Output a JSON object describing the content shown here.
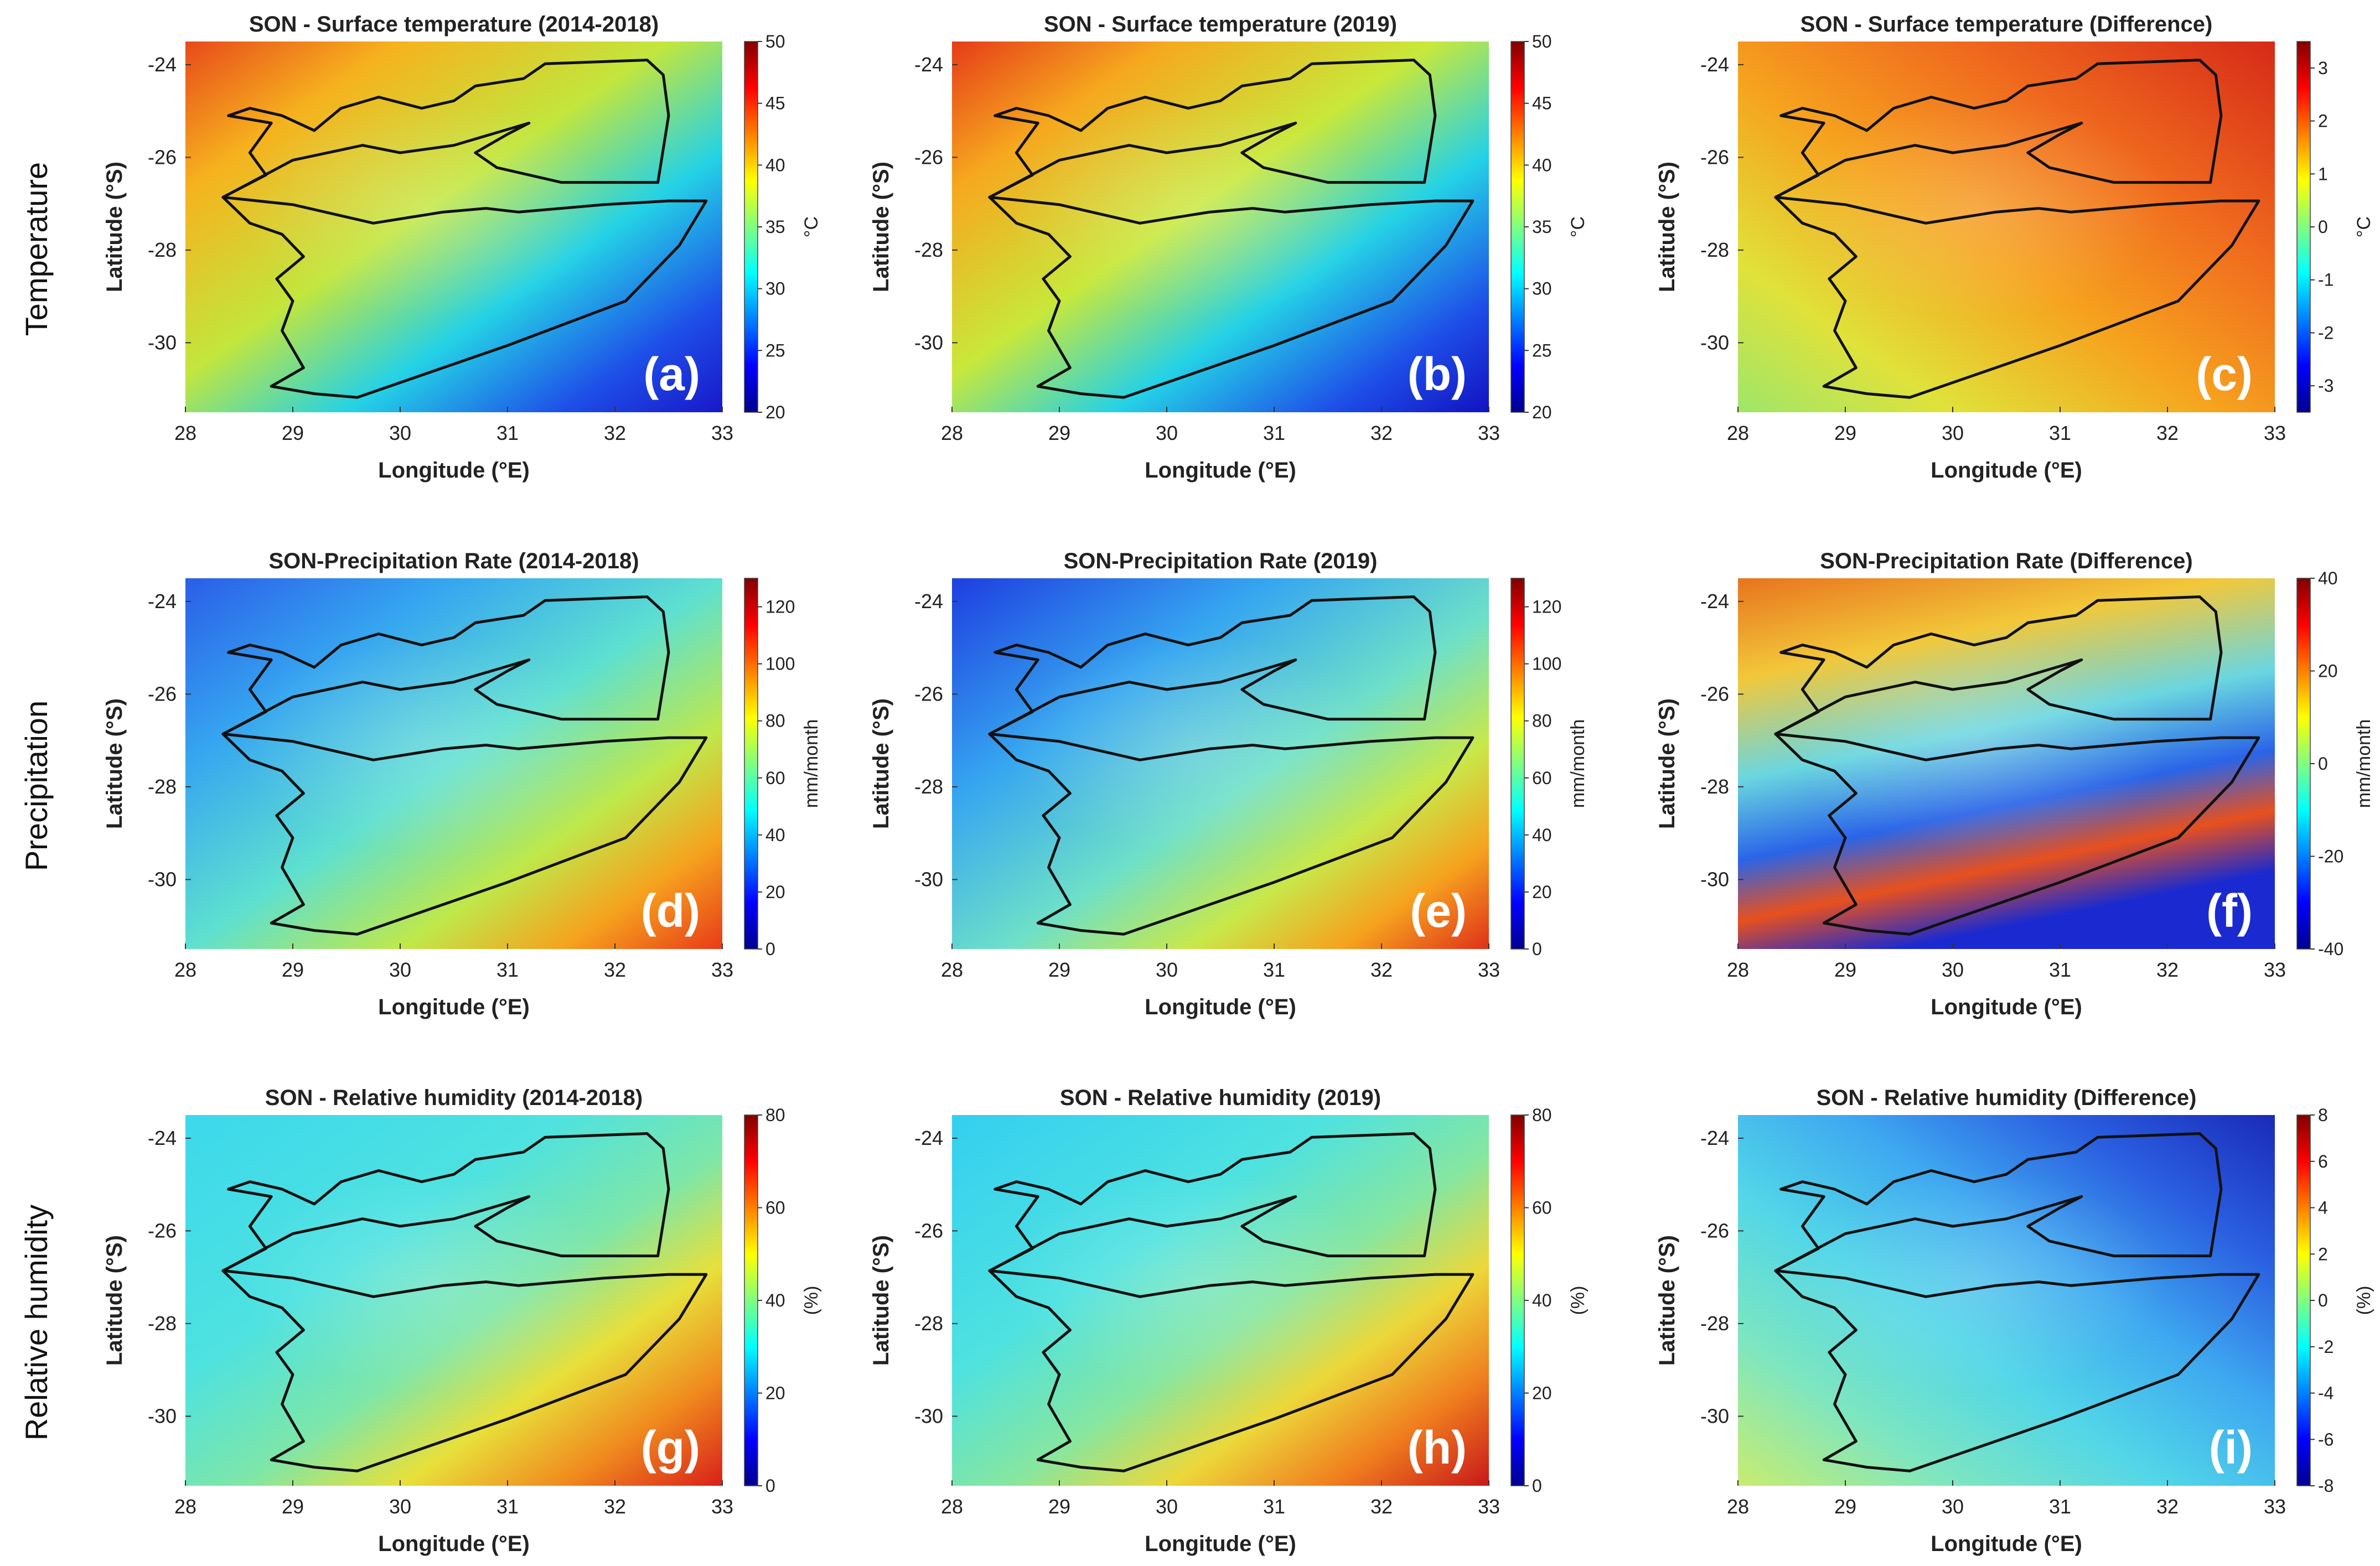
{
  "row_labels": [
    "Temperature",
    "Precipitation",
    "Relative humidity"
  ],
  "chart_data": [
    {
      "type": "heatmap",
      "title": "SON - Surface temperature (2014-2018)",
      "panel_label": "(a)",
      "xlabel": "Longitude (°E)",
      "ylabel": "Latitude (°S)",
      "x_ticks": [
        "28",
        "29",
        "30",
        "31",
        "32",
        "33"
      ],
      "y_ticks": [
        "-24",
        "-26",
        "-28",
        "-30"
      ],
      "xlim": [
        28,
        33
      ],
      "ylim": [
        -31.5,
        -23.5
      ],
      "colorbar": {
        "label": "°C",
        "ticks": [
          "20",
          "25",
          "30",
          "35",
          "40",
          "45",
          "50"
        ],
        "range": [
          20,
          50
        ]
      },
      "field": {
        "colors": [
          "#e84a1a",
          "#f6b21e",
          "#c2e63d",
          "#24d2e6",
          "#1e4ee8",
          "#1818c8"
        ],
        "bands": [
          0,
          0.2,
          0.45,
          0.65,
          0.85,
          1.0
        ],
        "direction": "diagonal"
      }
    },
    {
      "type": "heatmap",
      "title": "SON - Surface temperature (2019)",
      "panel_label": "(b)",
      "xlabel": "Longitude (°E)",
      "ylabel": "Latitude (°S)",
      "x_ticks": [
        "28",
        "29",
        "30",
        "31",
        "32",
        "33"
      ],
      "y_ticks": [
        "-24",
        "-26",
        "-28",
        "-30"
      ],
      "xlim": [
        28,
        33
      ],
      "ylim": [
        -31.5,
        -23.5
      ],
      "colorbar": {
        "label": "°C",
        "ticks": [
          "20",
          "25",
          "30",
          "35",
          "40",
          "45",
          "50"
        ],
        "range": [
          20,
          50
        ]
      },
      "field": {
        "colors": [
          "#e63c18",
          "#f6a81e",
          "#c8e83a",
          "#24d2e6",
          "#1e4ee8",
          "#1212c0"
        ],
        "bands": [
          0,
          0.2,
          0.45,
          0.65,
          0.85,
          1.0
        ],
        "direction": "diagonal"
      }
    },
    {
      "type": "heatmap",
      "title": "SON - Surface temperature (Difference)",
      "panel_label": "(c)",
      "xlabel": "Longitude (°E)",
      "ylabel": "Latitude (°S)",
      "x_ticks": [
        "28",
        "29",
        "30",
        "31",
        "32",
        "33"
      ],
      "y_ticks": [
        "-24",
        "-26",
        "-28",
        "-30"
      ],
      "xlim": [
        28,
        33
      ],
      "ylim": [
        -31.5,
        -23.5
      ],
      "colorbar": {
        "label": "°C",
        "ticks": [
          "-3",
          "-2",
          "-1",
          "0",
          "1",
          "2",
          "3"
        ],
        "range": [
          -3.5,
          3.5
        ]
      },
      "field": {
        "colors": [
          "#d62a18",
          "#f06a1e",
          "#f6a31e",
          "#e0e23a",
          "#9ee66a"
        ],
        "bands": [
          0,
          0.3,
          0.55,
          0.8,
          1.0
        ],
        "direction": "reverse-diagonal"
      }
    },
    {
      "type": "heatmap",
      "title": "SON-Precipitation Rate (2014-2018)",
      "panel_label": "(d)",
      "xlabel": "Longitude (°E)",
      "ylabel": "Latitude (°S)",
      "x_ticks": [
        "28",
        "29",
        "30",
        "31",
        "32",
        "33"
      ],
      "y_ticks": [
        "-24",
        "-26",
        "-28",
        "-30"
      ],
      "xlim": [
        28,
        33
      ],
      "ylim": [
        -31.5,
        -23.5
      ],
      "colorbar": {
        "label": "mm/month",
        "ticks": [
          "0",
          "20",
          "40",
          "60",
          "80",
          "100",
          "120"
        ],
        "range": [
          0,
          130
        ]
      },
      "field": {
        "colors": [
          "#2a5ee8",
          "#36a6f0",
          "#5ee0d0",
          "#bfe84a",
          "#f6a21e",
          "#e83a18"
        ],
        "bands": [
          0,
          0.25,
          0.5,
          0.7,
          0.85,
          1.0
        ],
        "direction": "diagonal"
      }
    },
    {
      "type": "heatmap",
      "title": "SON-Precipitation Rate (2019)",
      "panel_label": "(e)",
      "xlabel": "Longitude (°E)",
      "ylabel": "Latitude (°S)",
      "x_ticks": [
        "28",
        "29",
        "30",
        "31",
        "32",
        "33"
      ],
      "y_ticks": [
        "-24",
        "-26",
        "-28",
        "-30"
      ],
      "xlim": [
        28,
        33
      ],
      "ylim": [
        -31.5,
        -23.5
      ],
      "colorbar": {
        "label": "mm/month",
        "ticks": [
          "0",
          "20",
          "40",
          "60",
          "80",
          "100",
          "120"
        ],
        "range": [
          0,
          130
        ]
      },
      "field": {
        "colors": [
          "#1e3ee0",
          "#36a6f0",
          "#6ee0c8",
          "#c8e84a",
          "#f6a21e",
          "#e0301a"
        ],
        "bands": [
          0,
          0.3,
          0.55,
          0.72,
          0.86,
          1.0
        ],
        "direction": "diagonal"
      }
    },
    {
      "type": "heatmap",
      "title": "SON-Precipitation Rate (Difference)",
      "panel_label": "(f)",
      "xlabel": "Longitude (°E)",
      "ylabel": "Latitude (°S)",
      "x_ticks": [
        "28",
        "29",
        "30",
        "31",
        "32",
        "33"
      ],
      "y_ticks": [
        "-24",
        "-26",
        "-28",
        "-30"
      ],
      "xlim": [
        28,
        33
      ],
      "ylim": [
        -31.5,
        -23.5
      ],
      "colorbar": {
        "label": "mm/month",
        "ticks": [
          "-40",
          "-20",
          "0",
          "20",
          "40"
        ],
        "range": [
          -40,
          40
        ]
      },
      "field": {
        "colors": [
          "#e8741e",
          "#f2c83a",
          "#6ad6e0",
          "#2a64e8",
          "#e8501e",
          "#1a2ad0"
        ],
        "bands": [
          0,
          0.25,
          0.5,
          0.7,
          0.85,
          1.0
        ],
        "direction": "vertical"
      }
    },
    {
      "type": "heatmap",
      "title": "SON - Relative humidity (2014-2018)",
      "panel_label": "(g)",
      "xlabel": "Longitude (°E)",
      "ylabel": "Latitude (°S)",
      "x_ticks": [
        "28",
        "29",
        "30",
        "31",
        "32",
        "33"
      ],
      "y_ticks": [
        "-24",
        "-26",
        "-28",
        "-30"
      ],
      "xlim": [
        28,
        33
      ],
      "ylim": [
        -31.5,
        -23.5
      ],
      "colorbar": {
        "label": "(%)",
        "ticks": [
          "0",
          "20",
          "40",
          "60",
          "80"
        ],
        "range": [
          0,
          80
        ]
      },
      "field": {
        "colors": [
          "#3cd8ec",
          "#4ee2e0",
          "#7ee6a8",
          "#e8e03a",
          "#f08a1e",
          "#d8201a"
        ],
        "bands": [
          0,
          0.35,
          0.55,
          0.7,
          0.85,
          1.0
        ],
        "direction": "diagonal"
      }
    },
    {
      "type": "heatmap",
      "title": "SON - Relative humidity (2019)",
      "panel_label": "(h)",
      "xlabel": "Longitude (°E)",
      "ylabel": "Latitude (°S)",
      "x_ticks": [
        "28",
        "29",
        "30",
        "31",
        "32",
        "33"
      ],
      "y_ticks": [
        "-24",
        "-26",
        "-28",
        "-30"
      ],
      "xlim": [
        28,
        33
      ],
      "ylim": [
        -31.5,
        -23.5
      ],
      "colorbar": {
        "label": "(%)",
        "ticks": [
          "0",
          "20",
          "40",
          "60",
          "80"
        ],
        "range": [
          0,
          80
        ]
      },
      "field": {
        "colors": [
          "#34cff0",
          "#4ee2e0",
          "#86e6a0",
          "#ecd83a",
          "#f07e1e",
          "#c8181a"
        ],
        "bands": [
          0,
          0.35,
          0.55,
          0.7,
          0.85,
          1.0
        ],
        "direction": "diagonal"
      }
    },
    {
      "type": "heatmap",
      "title": "SON - Relative humidity (Difference)",
      "panel_label": "(i)",
      "xlabel": "Longitude (°E)",
      "ylabel": "Latitude (°S)",
      "x_ticks": [
        "28",
        "29",
        "30",
        "31",
        "32",
        "33"
      ],
      "y_ticks": [
        "-24",
        "-26",
        "-28",
        "-30"
      ],
      "xlim": [
        28,
        33
      ],
      "ylim": [
        -31.5,
        -23.5
      ],
      "colorbar": {
        "label": "(%)",
        "ticks": [
          "-8",
          "-6",
          "-4",
          "-2",
          "0",
          "2",
          "4",
          "6",
          "8"
        ],
        "range": [
          -8,
          8
        ]
      },
      "field": {
        "colors": [
          "#1a2ab8",
          "#2a5ee0",
          "#3ea8f0",
          "#52d6e8",
          "#7ee6c0",
          "#c8ec70"
        ],
        "bands": [
          0,
          0.2,
          0.4,
          0.6,
          0.8,
          1.0
        ],
        "direction": "reverse-diagonal"
      }
    }
  ]
}
